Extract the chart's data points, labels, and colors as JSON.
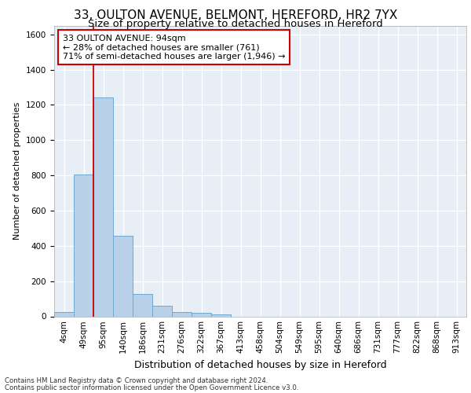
{
  "title_line1": "33, OULTON AVENUE, BELMONT, HEREFORD, HR2 7YX",
  "title_line2": "Size of property relative to detached houses in Hereford",
  "xlabel": "Distribution of detached houses by size in Hereford",
  "ylabel": "Number of detached properties",
  "bar_values": [
    25,
    805,
    1240,
    455,
    125,
    60,
    25,
    18,
    12,
    0,
    0,
    0,
    0,
    0,
    0,
    0,
    0,
    0,
    0,
    0,
    0
  ],
  "categories": [
    "4sqm",
    "49sqm",
    "95sqm",
    "140sqm",
    "186sqm",
    "231sqm",
    "276sqm",
    "322sqm",
    "367sqm",
    "413sqm",
    "458sqm",
    "504sqm",
    "549sqm",
    "595sqm",
    "640sqm",
    "686sqm",
    "731sqm",
    "777sqm",
    "822sqm",
    "868sqm",
    "913sqm"
  ],
  "bar_color": "#b8d0e8",
  "bar_edge_color": "#6fa8d0",
  "vline_color": "#cc0000",
  "vline_pos": 2,
  "annotation_text": "33 OULTON AVENUE: 94sqm\n← 28% of detached houses are smaller (761)\n71% of semi-detached houses are larger (1,946) →",
  "annotation_box_color": "#cc0000",
  "ylim": [
    0,
    1650
  ],
  "yticks": [
    0,
    200,
    400,
    600,
    800,
    1000,
    1200,
    1400,
    1600
  ],
  "footer_line1": "Contains HM Land Registry data © Crown copyright and database right 2024.",
  "footer_line2": "Contains public sector information licensed under the Open Government Licence v3.0.",
  "background_color": "#e8eef5",
  "grid_color": "#ffffff",
  "title_fontsize": 11,
  "subtitle_fontsize": 9.5,
  "ylabel_fontsize": 8,
  "xlabel_fontsize": 9,
  "tick_fontsize": 7.5,
  "annot_fontsize": 8
}
